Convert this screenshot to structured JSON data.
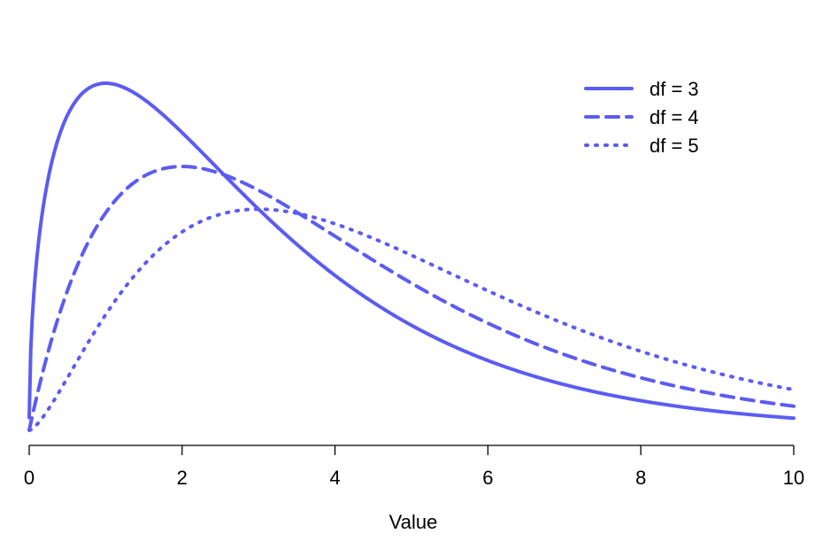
{
  "chart_data": {
    "type": "line",
    "title": "",
    "xlabel": "Value",
    "ylabel": "",
    "xlim": [
      0,
      10
    ],
    "x_ticks": [
      0,
      2,
      4,
      6,
      8,
      10
    ],
    "x_tick_labels": [
      "0",
      "2",
      "4",
      "6",
      "8",
      "10"
    ],
    "y_axis_shown": false,
    "grid": false,
    "legend_position": "top-right",
    "color": "#5c5cf2",
    "series": [
      {
        "name": "df = 3",
        "df": 3,
        "line_style": "solid"
      },
      {
        "name": "df = 4",
        "df": 4,
        "line_style": "dashed"
      },
      {
        "name": "df = 5",
        "df": 5,
        "line_style": "dotted"
      }
    ],
    "distribution": "chi-square density"
  }
}
